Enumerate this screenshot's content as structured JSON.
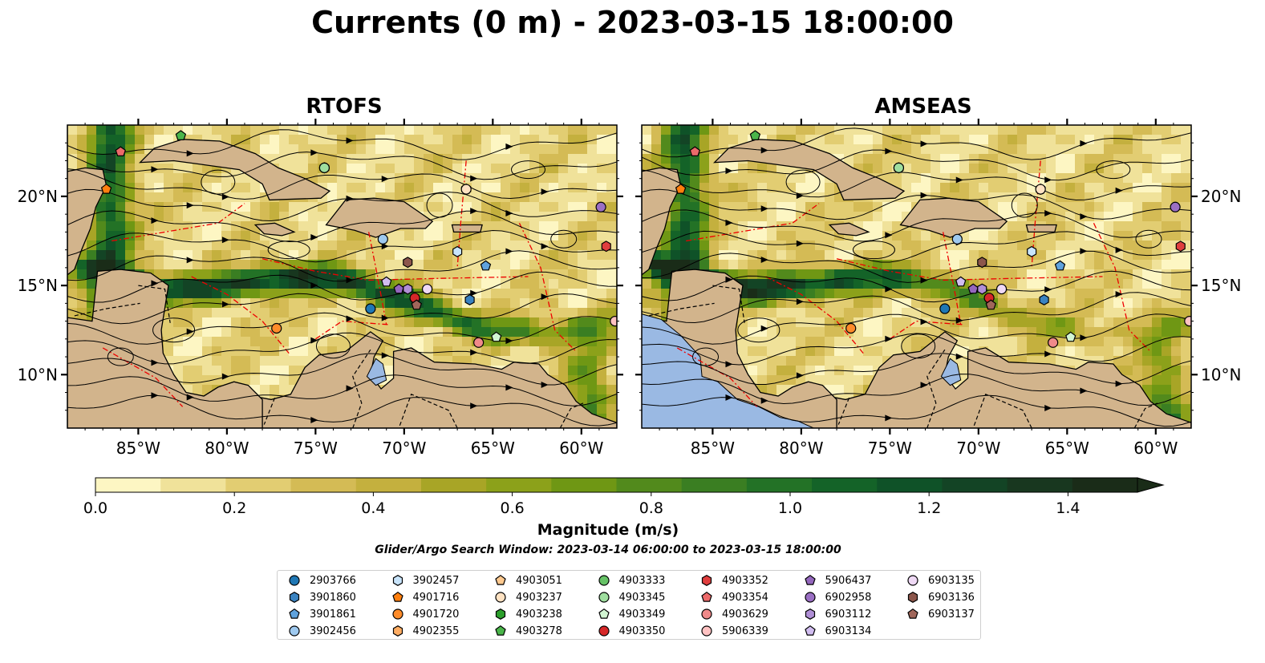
{
  "suptitle": "Currents (0 m) - 2023-03-15 18:00:00",
  "panels": [
    {
      "title": "RTOFS"
    },
    {
      "title": "AMSEAS"
    }
  ],
  "map_extent": {
    "lon": [
      -89,
      -58
    ],
    "lat": [
      7,
      24
    ]
  },
  "lon_ticks": [
    {
      "value": -85,
      "label": "85°W"
    },
    {
      "value": -80,
      "label": "80°W"
    },
    {
      "value": -75,
      "label": "75°W"
    },
    {
      "value": -70,
      "label": "70°W"
    },
    {
      "value": -65,
      "label": "65°W"
    },
    {
      "value": -60,
      "label": "60°W"
    }
  ],
  "lat_ticks": [
    {
      "value": 20,
      "label": "20°N"
    },
    {
      "value": 15,
      "label": "15°N"
    },
    {
      "value": 10,
      "label": "10°N"
    }
  ],
  "colorbar": {
    "title": "Magnitude (m/s)",
    "range": [
      0,
      1.5
    ],
    "ticks": [
      "0.0",
      "0.2",
      "0.4",
      "0.6",
      "0.8",
      "1.0",
      "1.2",
      "1.4"
    ],
    "colors": [
      "#fdf6c3",
      "#f0e29a",
      "#e2cd72",
      "#d4bb55",
      "#c4b03e",
      "#a8a526",
      "#8ca11a",
      "#6f9714",
      "#528a1c",
      "#3a7e22",
      "#237226",
      "#146328",
      "#0f5228",
      "#134425",
      "#18371f",
      "#1a2c18"
    ]
  },
  "search_window": "Glider/Argo Search Window: 2023-03-14 06:00:00 to 2023-03-15 18:00:00",
  "platforms": [
    {
      "id": "2903766",
      "color": "#1f77b4",
      "shape": "circle",
      "lon": -71.9,
      "lat": 13.7
    },
    {
      "id": "3901860",
      "color": "#3a83c1",
      "shape": "hexagon",
      "lon": -66.3,
      "lat": 14.2
    },
    {
      "id": "3901861",
      "color": "#5fa2dd",
      "shape": "pentagon",
      "lon": -65.4,
      "lat": 16.1
    },
    {
      "id": "3902456",
      "color": "#9ec9ef",
      "shape": "circle",
      "lon": -71.2,
      "lat": 17.6
    },
    {
      "id": "3902457",
      "color": "#c8e4fb",
      "shape": "hexagon",
      "lon": -67.0,
      "lat": 16.9
    },
    {
      "id": "4901716",
      "color": "#ff7f0e",
      "shape": "pentagon",
      "lon": -86.8,
      "lat": 20.4
    },
    {
      "id": "4901720",
      "color": "#ff8c2a",
      "shape": "circle",
      "lon": -77.2,
      "lat": 12.6
    },
    {
      "id": "4902355",
      "color": "#ffad63",
      "shape": "hexagon",
      "lon": -66.5,
      "lat": 20.4
    },
    {
      "id": "4903051",
      "color": "#ffc98f",
      "shape": "pentagon",
      "lon": -66.5,
      "lat": 20.4
    },
    {
      "id": "4903237",
      "color": "#ffe2c2",
      "shape": "circle",
      "lon": -66.5,
      "lat": 20.4
    },
    {
      "id": "4903238",
      "color": "#2ca02c",
      "shape": "hexagon",
      "lon": -74.5,
      "lat": 21.6
    },
    {
      "id": "4903278",
      "color": "#4ab54a",
      "shape": "pentagon",
      "lon": -82.6,
      "lat": 23.4
    },
    {
      "id": "4903333",
      "color": "#66c266",
      "shape": "circle",
      "lon": -74.5,
      "lat": 21.6
    },
    {
      "id": "4903345",
      "color": "#9fde9f",
      "shape": "circle",
      "lon": -74.5,
      "lat": 21.6
    },
    {
      "id": "4903349",
      "color": "#d2f5d2",
      "shape": "pentagon",
      "lon": -64.8,
      "lat": 12.1
    },
    {
      "id": "4903350",
      "color": "#d62728",
      "shape": "circle",
      "lon": -69.4,
      "lat": 14.3
    },
    {
      "id": "4903352",
      "color": "#e03e3e",
      "shape": "hexagon",
      "lon": -58.6,
      "lat": 17.2
    },
    {
      "id": "4903354",
      "color": "#ec6a6a",
      "shape": "pentagon",
      "lon": -86.0,
      "lat": 22.5
    },
    {
      "id": "4903629",
      "color": "#f08a8a",
      "shape": "circle",
      "lon": -65.8,
      "lat": 11.8
    },
    {
      "id": "5906339",
      "color": "#ffc2c2",
      "shape": "circle",
      "lon": -58.1,
      "lat": 13.0
    },
    {
      "id": "5906437",
      "color": "#9467bd",
      "shape": "pentagon",
      "lon": -70.3,
      "lat": 14.8
    },
    {
      "id": "6902958",
      "color": "#9b6fc4",
      "shape": "circle",
      "lon": -58.9,
      "lat": 19.4
    },
    {
      "id": "6903112",
      "color": "#b08fd6",
      "shape": "hexagon",
      "lon": -69.8,
      "lat": 14.8
    },
    {
      "id": "6903134",
      "color": "#d1bdf0",
      "shape": "pentagon",
      "lon": -71.0,
      "lat": 15.2
    },
    {
      "id": "6903135",
      "color": "#efd9f5",
      "shape": "circle",
      "lon": -68.7,
      "lat": 14.8
    },
    {
      "id": "6903136",
      "color": "#8c564b",
      "shape": "hexagon",
      "lon": -69.8,
      "lat": 16.3
    },
    {
      "id": "6903137",
      "color": "#a0665a",
      "shape": "pentagon",
      "lon": -69.3,
      "lat": 13.9
    }
  ]
}
